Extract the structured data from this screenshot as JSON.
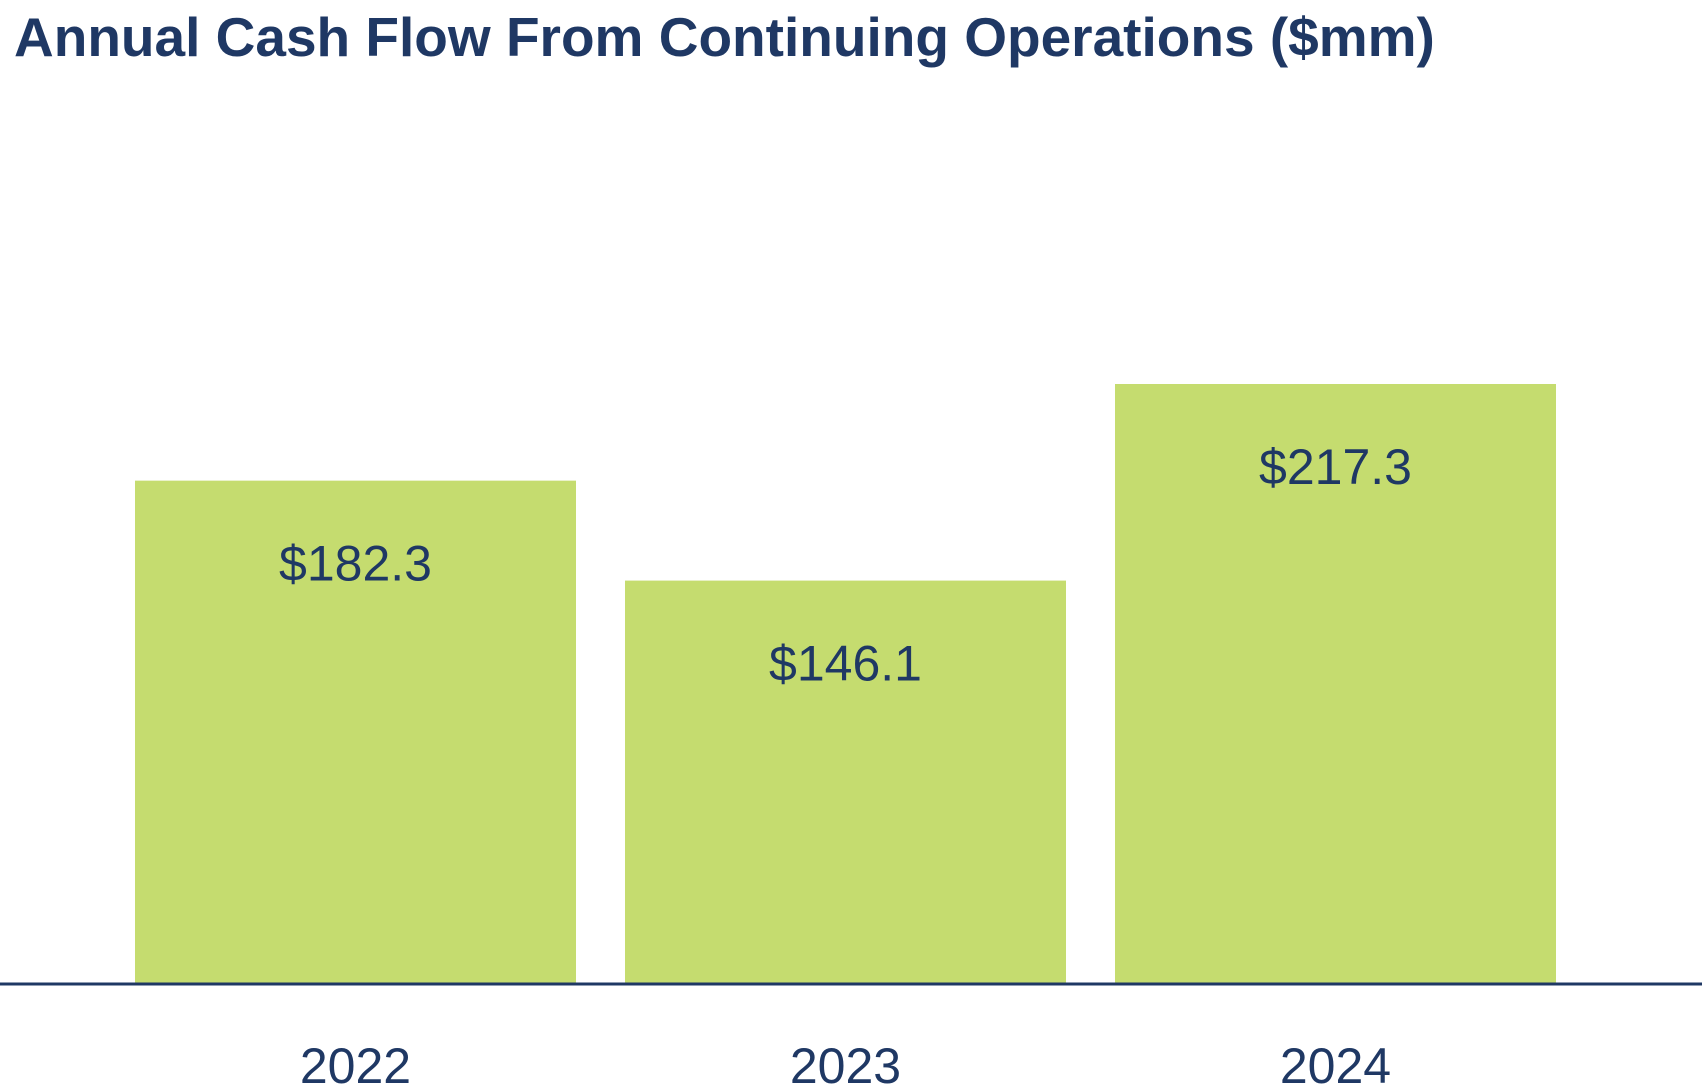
{
  "chart_data": {
    "type": "bar",
    "title": "Annual Cash Flow From Continuing Operations ($mm)",
    "categories": [
      "2022",
      "2023",
      "2024"
    ],
    "values": [
      182.3,
      146.1,
      217.3
    ],
    "data_labels": [
      "$182.3",
      "$146.1",
      "$217.3"
    ],
    "xlabel": "",
    "ylabel": "",
    "ylim": [
      0,
      290
    ],
    "grid": false,
    "legend": "none",
    "colors": {
      "bar": "#c5dc6f",
      "text": "#1f3864",
      "axis": "#1f3864"
    }
  }
}
